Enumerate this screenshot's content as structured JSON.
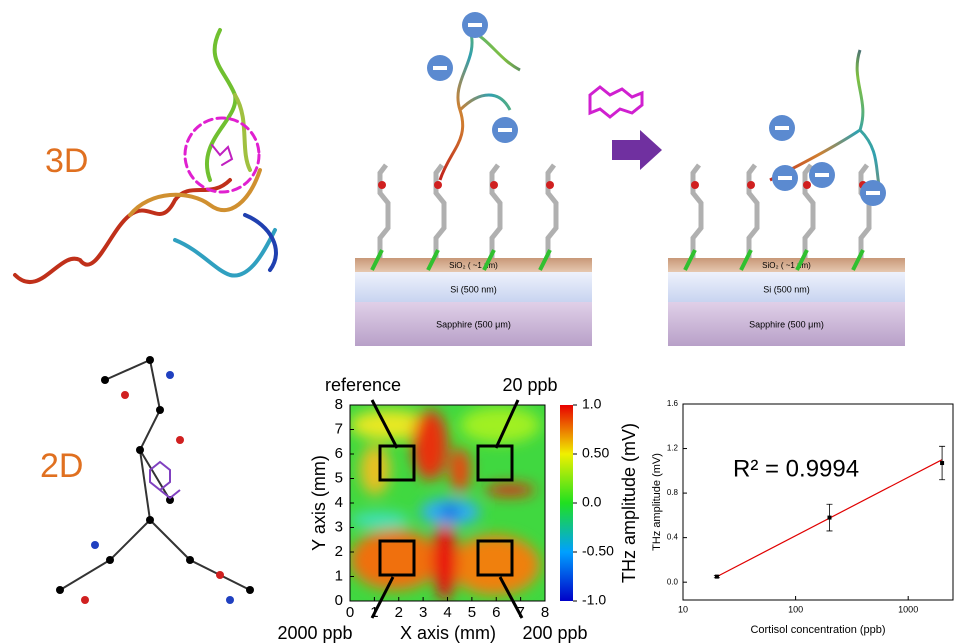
{
  "figure": {
    "label_3d": "3D",
    "label_2d": "2D",
    "substrate_before": {
      "layers": [
        "SiO₂ ( ~1 nm)",
        "Si (500 nm)",
        "Sapphire (500 μm)"
      ]
    },
    "substrate_after": {
      "layers": [
        "SiO₂ ( ~1 nm)",
        "Si (500 nm)",
        "Sapphire (500 μm)"
      ]
    }
  },
  "heatmap": {
    "xlabel": "X axis (mm)",
    "ylabel": "Y axis (mm)",
    "xlim": [
      0,
      8
    ],
    "ylim": [
      0,
      8
    ],
    "xticks": [
      0,
      1,
      2,
      3,
      4,
      5,
      6,
      7,
      8
    ],
    "yticks": [
      0,
      1,
      2,
      3,
      4,
      5,
      6,
      7,
      8
    ],
    "colorbar": {
      "label": "THz amplitude (mV)",
      "lim": [
        -1.0,
        1.0
      ],
      "ticks": [
        {
          "value": 1.0,
          "label": "1.0"
        },
        {
          "value": 0.5,
          "label": "0.50"
        },
        {
          "value": 0,
          "label": "0.0"
        },
        {
          "value": -0.5,
          "label": "-0.50"
        },
        {
          "value": -1.0,
          "label": "-1.0"
        }
      ]
    },
    "annotations": [
      "reference",
      "20 ppb",
      "2000 ppb",
      "200 ppb"
    ]
  },
  "chart_data": {
    "type": "scatter",
    "xlabel": "Cortisol concentration (ppb)",
    "ylabel": "THz amplitude (mV)",
    "annotation": "R² = 0.9994",
    "log_x": true,
    "x": [
      20,
      200,
      2000
    ],
    "values": [
      0.05,
      0.58,
      1.07
    ],
    "errors": [
      0.01,
      0.12,
      0.15
    ],
    "color": "#000000",
    "fit": {
      "x": [
        20,
        2000
      ],
      "values": [
        0.05,
        1.1
      ],
      "color": "#e00000"
    },
    "xlim": [
      10,
      2500
    ],
    "ylim": [
      -0.16,
      1.6
    ],
    "xticks": [
      10,
      100,
      1000
    ],
    "yticks": [
      {
        "value": 0,
        "label": "0.0"
      },
      {
        "value": 0.4,
        "label": "0.4"
      },
      {
        "value": 0.8,
        "label": "0.8"
      },
      {
        "value": 1.2,
        "label": "1.2"
      },
      {
        "value": 1.6,
        "label": "1.6"
      }
    ]
  }
}
